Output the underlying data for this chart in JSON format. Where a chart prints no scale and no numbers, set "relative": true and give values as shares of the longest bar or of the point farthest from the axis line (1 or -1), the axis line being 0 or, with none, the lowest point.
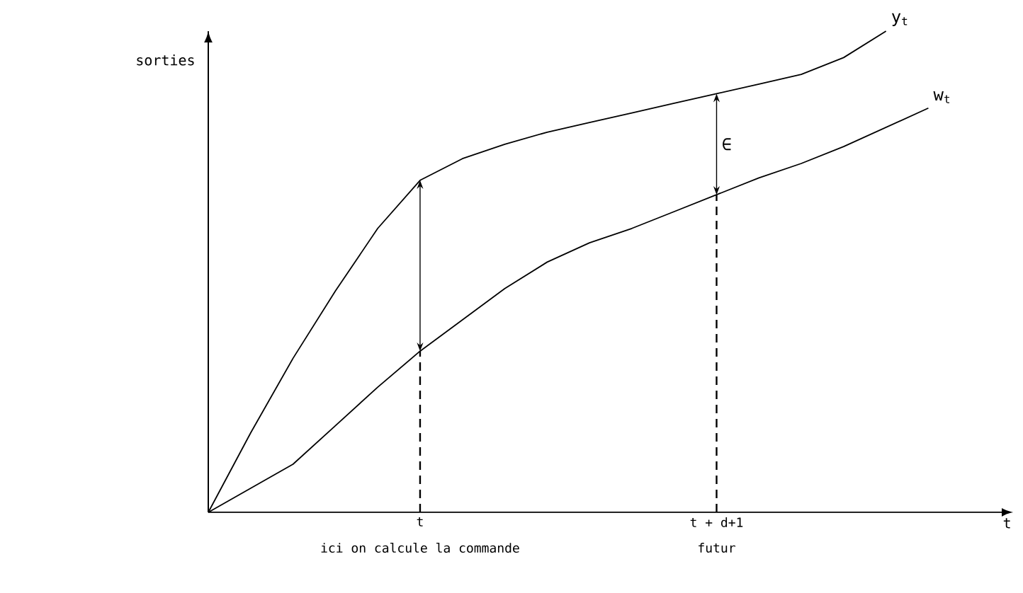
{
  "chart_data": {
    "type": "line",
    "relative": true,
    "ylabel": "sorties",
    "xlabel": "t",
    "categories": [
      null,
      null,
      null,
      null,
      null,
      "t",
      null,
      null,
      null,
      null,
      null,
      null,
      "t + d+1",
      null,
      null,
      null,
      null,
      null
    ],
    "series": [
      {
        "name": "y$_{t}$",
        "color": "#000000",
        "values": [
          0,
          0.165,
          0.32,
          0.46,
          0.59,
          0.69,
          0.735,
          0.765,
          0.79,
          0.81,
          0.83,
          0.85,
          0.87,
          0.89,
          0.91,
          0.945,
          1.0,
          null
        ]
      },
      {
        "name": "w$_{t}$",
        "color": "#000000",
        "values": [
          0,
          0.05,
          0.1,
          0.18,
          0.26,
          0.335,
          0.4,
          0.465,
          0.52,
          0.56,
          0.59,
          0.625,
          0.66,
          0.695,
          0.725,
          0.76,
          0.8,
          0.84
        ]
      }
    ],
    "annotations": [
      "ici on calcule la commande",
      "futur",
      "∈"
    ],
    "legend": false
  }
}
